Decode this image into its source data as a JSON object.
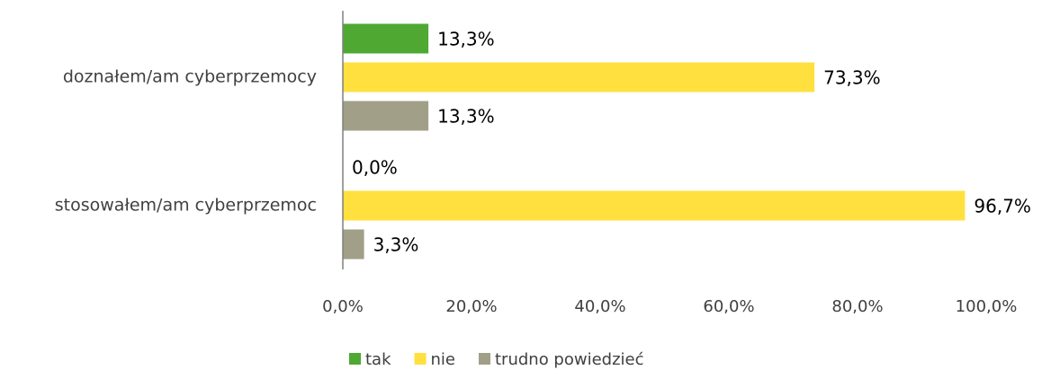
{
  "chart_data": {
    "type": "bar",
    "orientation": "horizontal",
    "categories": [
      "doznałem/am cyberprzemocy",
      "stosowałem/am cyberprzemoc"
    ],
    "series": [
      {
        "name": "tak",
        "color": "#4ea832",
        "values": [
          13.3,
          0.0
        ],
        "value_labels": [
          "13,3%",
          "0,0%"
        ]
      },
      {
        "name": "nie",
        "color": "#ffe03f",
        "values": [
          73.3,
          96.7
        ],
        "value_labels": [
          "73,3%",
          "96,7%"
        ]
      },
      {
        "name": "trudno powiedzieć",
        "color": "#a19f87",
        "values": [
          13.3,
          3.3
        ],
        "value_labels": [
          "13,3%",
          "3,3%"
        ]
      }
    ],
    "xlim": [
      0,
      100
    ],
    "xticks": [
      {
        "value": 0,
        "label": "0,0%"
      },
      {
        "value": 20,
        "label": "20,0%"
      },
      {
        "value": 40,
        "label": "40,0%"
      },
      {
        "value": 60,
        "label": "60,0%"
      },
      {
        "value": 80,
        "label": "80,0%"
      },
      {
        "value": 100,
        "label": "100,0%"
      }
    ],
    "legend": "bottom"
  }
}
